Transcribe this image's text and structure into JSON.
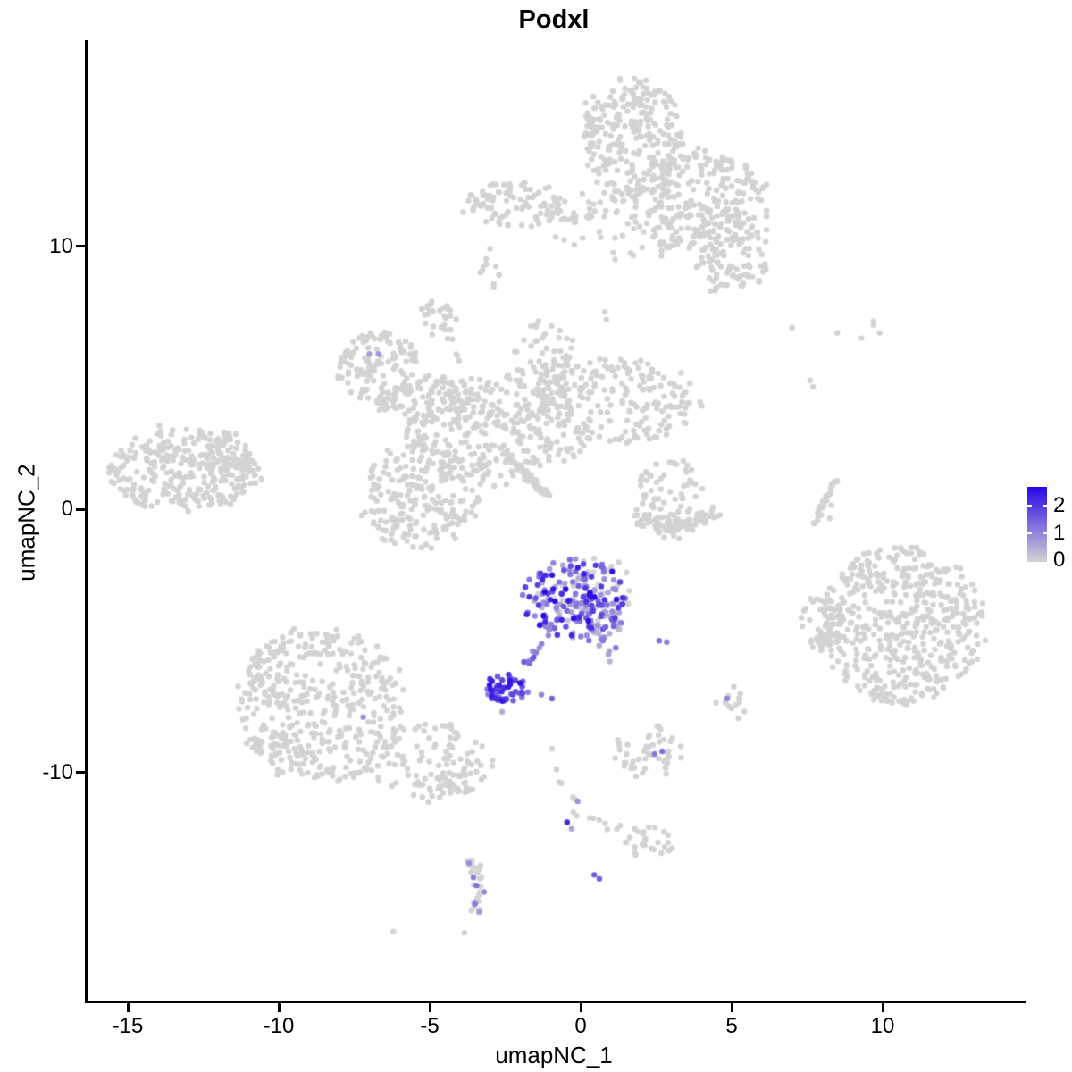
{
  "title": "Podxl",
  "axes": {
    "x": {
      "label": "umapNC_1",
      "tick_labels": [
        "-15",
        "-10",
        "-5",
        "0",
        "5",
        "10"
      ],
      "tick_values": [
        -15,
        -10,
        -5,
        0,
        5,
        10
      ],
      "range": [
        -16.4,
        14.65
      ]
    },
    "y": {
      "label": "umapNC_2",
      "tick_labels": [
        "10",
        "0",
        "-10"
      ],
      "tick_values": [
        10,
        0,
        -10
      ],
      "range": [
        -18.7,
        17.8
      ]
    }
  },
  "legend": {
    "labels": [
      "2",
      "1",
      "0"
    ],
    "label_values": [
      2,
      1,
      0
    ],
    "low_color": "#D3D3D3",
    "high_color": "#2606E8",
    "max_value": 2.75
  },
  "chart_data": {
    "type": "scatter",
    "title": "Podxl",
    "xlabel": "umapNC_1",
    "ylabel": "umapNC_2",
    "xlim": [
      -16.4,
      14.65
    ],
    "ylim": [
      -18.7,
      17.8
    ],
    "grid": false,
    "legend_position": "right",
    "point_radius": 3.2,
    "colors": {
      "zero": "#D3D3D3",
      "max": "#2606E8"
    },
    "seed": 42,
    "clusters": [
      {
        "name": "top-stalk",
        "shape": "gauss",
        "c": [
          1.7,
          14.1
        ],
        "s": [
          0.85,
          1.15
        ],
        "n": 260
      },
      {
        "name": "top-mid",
        "shape": "gauss",
        "c": [
          4.0,
          11.7
        ],
        "s": [
          1.15,
          0.95
        ],
        "n": 230
      },
      {
        "name": "top-right-lobe",
        "shape": "gauss",
        "c": [
          5.0,
          9.7
        ],
        "s": [
          0.6,
          0.85
        ],
        "n": 110
      },
      {
        "name": "top-left-band",
        "shape": "gauss",
        "c": [
          -2.3,
          11.6
        ],
        "s": [
          0.8,
          0.45
        ],
        "n": 85
      },
      {
        "name": "top-band-trail",
        "shape": "line",
        "pts": [
          [
            -1.3,
            11.2
          ],
          [
            0.7,
            11.1
          ]
        ],
        "j": 0.15,
        "n": 14
      },
      {
        "name": "top-bridge",
        "shape": "gauss",
        "c": [
          1.5,
          10.9
        ],
        "s": [
          1.3,
          0.75
        ],
        "n": 65
      },
      {
        "name": "top-left-satellite",
        "shape": "gauss",
        "c": [
          -3.1,
          8.8
        ],
        "s": [
          0.2,
          0.35
        ],
        "n": 9
      },
      {
        "name": "butterfly-top-knob",
        "shape": "gauss",
        "c": [
          -4.7,
          7.3
        ],
        "s": [
          0.28,
          0.33
        ],
        "n": 26
      },
      {
        "name": "butterfly-knob-trail",
        "shape": "line",
        "pts": [
          [
            -4.35,
            6.6
          ],
          [
            -4.05,
            5.6
          ]
        ],
        "j": 0.08,
        "n": 5
      },
      {
        "name": "butterfly-left-lobe",
        "shape": "gauss",
        "c": [
          -6.7,
          5.4
        ],
        "s": [
          0.7,
          0.7
        ],
        "n": 120
      },
      {
        "name": "butterfly-left-arm",
        "shape": "gauss",
        "c": [
          -4.9,
          4.1
        ],
        "s": [
          0.95,
          0.5
        ],
        "n": 95
      },
      {
        "name": "butterfly-center",
        "shape": "gauss",
        "c": [
          -2.8,
          3.0
        ],
        "s": [
          1.5,
          1.05
        ],
        "n": 310
      },
      {
        "name": "butterfly-top-arm",
        "shape": "gauss",
        "c": [
          -1.2,
          5.6
        ],
        "s": [
          0.5,
          0.75
        ],
        "n": 70
      },
      {
        "name": "butterfly-right-arm",
        "shape": "gauss",
        "c": [
          1.3,
          4.1
        ],
        "s": [
          1.35,
          0.8
        ],
        "n": 190
      },
      {
        "name": "butterfly-bottom-lobe",
        "shape": "gauss",
        "c": [
          -5.3,
          0.5
        ],
        "s": [
          1.0,
          1.0
        ],
        "n": 210
      },
      {
        "name": "butterfly-streak",
        "shape": "line",
        "pts": [
          [
            -2.5,
            2.1
          ],
          [
            -1.1,
            0.55
          ]
        ],
        "j": 0.06,
        "n": 70
      },
      {
        "name": "left-cluster",
        "shape": "gauss",
        "c": [
          -13.2,
          1.5
        ],
        "s": [
          1.25,
          0.8
        ],
        "n": 290
      },
      {
        "name": "left-point",
        "shape": "gauss",
        "c": [
          -11.35,
          1.45
        ],
        "s": [
          0.5,
          0.3
        ],
        "n": 45
      },
      {
        "name": "left-antenna",
        "shape": "line",
        "pts": [
          [
            -12.0,
            2.6
          ],
          [
            -11.3,
            3.0
          ]
        ],
        "j": 0.1,
        "n": 6
      },
      {
        "name": "smile-arc",
        "shape": "line",
        "pts": [
          [
            1.9,
            -0.3
          ],
          [
            3.1,
            -0.8
          ],
          [
            4.4,
            -0.2
          ]
        ],
        "j": 0.18,
        "n": 95
      },
      {
        "name": "smile-top",
        "shape": "gauss",
        "c": [
          3.0,
          0.6
        ],
        "s": [
          0.6,
          0.65
        ],
        "n": 55
      },
      {
        "name": "right-thin-arc",
        "shape": "line",
        "pts": [
          [
            8.5,
            1.15
          ],
          [
            8.05,
            0.3
          ],
          [
            7.75,
            -0.55
          ]
        ],
        "j": 0.05,
        "n": 30
      },
      {
        "name": "right-big",
        "shape": "gauss",
        "c": [
          10.6,
          -4.4
        ],
        "s": [
          1.4,
          1.5
        ],
        "n": 520
      },
      {
        "name": "right-satellite",
        "shape": "gauss",
        "c": [
          8.0,
          -4.4
        ],
        "s": [
          0.35,
          0.55
        ],
        "n": 40
      },
      {
        "name": "bottomleft-main",
        "shape": "gauss",
        "c": [
          -8.6,
          -7.4
        ],
        "s": [
          1.4,
          1.5
        ],
        "n": 430
      },
      {
        "name": "bottomleft-tail",
        "shape": "gauss",
        "c": [
          -5.1,
          -9.6
        ],
        "s": [
          1.1,
          0.75
        ],
        "n": 110
      },
      {
        "name": "bottomleft-knob",
        "shape": "gauss",
        "c": [
          -4.15,
          -10.4
        ],
        "s": [
          0.3,
          0.3
        ],
        "n": 22
      },
      {
        "name": "mid-small",
        "shape": "gauss",
        "c": [
          2.3,
          -9.2
        ],
        "s": [
          0.6,
          0.5
        ],
        "n": 48
      },
      {
        "name": "trail-down",
        "shape": "line",
        "pts": [
          [
            -0.65,
            -10.1
          ],
          [
            0.0,
            -11.7
          ]
        ],
        "j": 0.1,
        "n": 7
      },
      {
        "name": "trail-right",
        "shape": "line",
        "pts": [
          [
            0.1,
            -11.6
          ],
          [
            1.35,
            -12.2
          ]
        ],
        "j": 0.1,
        "n": 7
      },
      {
        "name": "bottom-blob",
        "shape": "gauss",
        "c": [
          2.2,
          -12.6
        ],
        "s": [
          0.45,
          0.3
        ],
        "n": 26
      },
      {
        "name": "dot-blob",
        "shape": "gauss",
        "c": [
          5.0,
          -7.35
        ],
        "s": [
          0.22,
          0.3
        ],
        "n": 13
      },
      {
        "name": "s-cluster",
        "shape": "line",
        "pts": [
          [
            -3.65,
            -13.4
          ],
          [
            -3.2,
            -14.6
          ],
          [
            -3.55,
            -15.4
          ]
        ],
        "j": 0.12,
        "n": 26
      },
      {
        "name": "podxl-main",
        "shape": "gauss",
        "c": [
          -0.2,
          -3.35
        ],
        "s": [
          0.85,
          0.75
        ],
        "n": 150,
        "expr": [
          0.4,
          2.7
        ]
      },
      {
        "name": "podxl-main-right",
        "shape": "gauss",
        "c": [
          0.55,
          -3.9
        ],
        "s": [
          0.5,
          0.55
        ],
        "n": 45,
        "expr": [
          0.1,
          1.5
        ]
      },
      {
        "name": "podxl-main-gray",
        "shape": "gauss",
        "c": [
          0.25,
          -3.2
        ],
        "s": [
          0.8,
          0.7
        ],
        "n": 30
      },
      {
        "name": "podxl-tail",
        "shape": "line",
        "pts": [
          [
            0.35,
            -4.6
          ],
          [
            0.95,
            -5.6
          ]
        ],
        "j": 0.12,
        "n": 14,
        "expr": [
          0.2,
          1.4
        ]
      },
      {
        "name": "podxl-chain",
        "shape": "line",
        "pts": [
          [
            -0.85,
            -4.35
          ],
          [
            -1.75,
            -5.9
          ]
        ],
        "j": 0.07,
        "n": 12,
        "expr": [
          0.6,
          1.9
        ]
      },
      {
        "name": "podxl-dense",
        "shape": "gauss",
        "c": [
          -2.5,
          -6.85
        ],
        "s": [
          0.34,
          0.28
        ],
        "n": 50,
        "expr": [
          1.2,
          2.7
        ]
      }
    ],
    "singles_gray": [
      [
        -3.0,
        9.9
      ],
      [
        -2.7,
        8.9
      ],
      [
        0.8,
        7.5
      ],
      [
        0.85,
        7.2
      ],
      [
        7.0,
        6.9
      ],
      [
        8.5,
        6.7
      ],
      [
        9.3,
        6.5
      ],
      [
        9.7,
        7.0
      ],
      [
        9.9,
        6.7
      ],
      [
        9.7,
        7.15
      ],
      [
        7.6,
        4.9
      ],
      [
        7.7,
        4.65
      ],
      [
        8.2,
        0.5
      ],
      [
        8.3,
        0.15
      ],
      [
        8.25,
        -0.35
      ],
      [
        -0.95,
        -9.1
      ],
      [
        -0.8,
        -9.9
      ],
      [
        -3.85,
        -16.1
      ],
      [
        -6.2,
        -16.05
      ]
    ],
    "singles_expr": [
      [
        -7.0,
        5.9,
        0.7
      ],
      [
        -6.7,
        5.9,
        0.8
      ],
      [
        -7.2,
        -7.9,
        0.9
      ],
      [
        2.6,
        -5.0,
        1.3
      ],
      [
        2.85,
        -5.05,
        1.1
      ],
      [
        -1.75,
        -6.95,
        1.2
      ],
      [
        -1.3,
        -7.05,
        1.0
      ],
      [
        -0.95,
        -7.2,
        1.5
      ],
      [
        -2.6,
        -7.7,
        0.5
      ],
      [
        4.85,
        -7.2,
        1.0
      ],
      [
        2.45,
        -9.3,
        1.2
      ],
      [
        2.7,
        -9.2,
        1.3
      ],
      [
        -0.1,
        -11.1,
        0.9
      ],
      [
        -0.45,
        -11.9,
        2.3
      ],
      [
        -0.3,
        -12.15,
        0.6
      ],
      [
        0.45,
        -13.9,
        1.6
      ],
      [
        0.62,
        -14.05,
        1.5
      ],
      [
        -3.7,
        -13.45,
        0.9
      ],
      [
        -3.55,
        -14.0,
        1.1
      ],
      [
        -3.45,
        -14.3,
        1.3
      ],
      [
        -3.2,
        -14.55,
        1.0
      ],
      [
        -3.5,
        -15.0,
        1.2
      ],
      [
        -3.35,
        -15.3,
        0.8
      ]
    ]
  }
}
